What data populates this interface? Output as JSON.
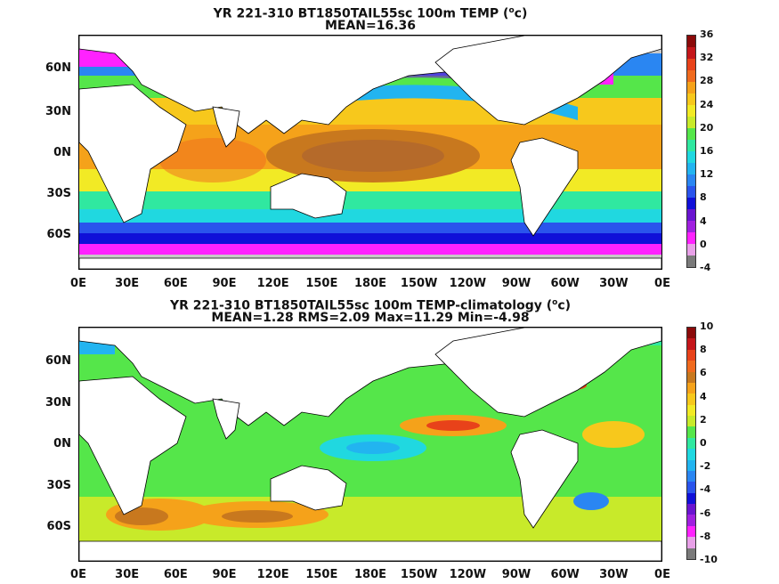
{
  "panels": [
    {
      "title_main": "YR 221-310 BT1850TAIL55sc 100m TEMP (",
      "title_unit": "o",
      "title_end": "c)",
      "subtitle": "MEAN=16.36",
      "colorbar": {
        "ticks": [
          "36",
          "32",
          "28",
          "24",
          "20",
          "16",
          "12",
          "8",
          "4",
          "0",
          "-4"
        ],
        "colors": [
          "#8b0a0a",
          "#c4161a",
          "#e8421a",
          "#f06a1e",
          "#f5a21a",
          "#f7c81c",
          "#f2ea25",
          "#c8ea2a",
          "#55e64a",
          "#30e8a0",
          "#20d8e0",
          "#22b4f0",
          "#2a86f2",
          "#2a54ec",
          "#1010d8",
          "#6a14d0",
          "#a020e0",
          "#ff22ff",
          "#e8a0e8",
          "#7a7a7a"
        ]
      },
      "lat_labels": [
        "60N",
        "30N",
        "0N",
        "30S",
        "60S"
      ],
      "lon_labels": [
        "0E",
        "30E",
        "60E",
        "90E",
        "120E",
        "150E",
        "180E",
        "150W",
        "120W",
        "90W",
        "60W",
        "30W",
        "0E"
      ]
    },
    {
      "title_main": "YR 221-310 BT1850TAIL55sc 100m TEMP-climatology (",
      "title_unit": "o",
      "title_end": "c)",
      "subtitle": "MEAN=1.28   RMS=2.09   Max=11.29   Min=-4.98",
      "colorbar": {
        "ticks": [
          "10",
          "8",
          "6",
          "4",
          "2",
          "0",
          "-2",
          "-4",
          "-6",
          "-8",
          "-10"
        ],
        "colors": [
          "#8b0a0a",
          "#c4161a",
          "#e8421a",
          "#f06a1e",
          "#c8781e",
          "#f5a21a",
          "#f7c81c",
          "#f2ea25",
          "#c8ea2a",
          "#55e64a",
          "#30e8a0",
          "#20d8e0",
          "#22b4f0",
          "#2a86f2",
          "#2a54ec",
          "#1010d8",
          "#6a14d0",
          "#a020e0",
          "#ff22ff",
          "#e8a0e8",
          "#7a7a7a"
        ]
      },
      "lat_labels": [
        "60N",
        "30N",
        "0N",
        "30S",
        "60S"
      ],
      "lon_labels": [
        "0E",
        "30E",
        "60E",
        "90E",
        "120E",
        "150E",
        "180E",
        "150W",
        "120W",
        "90W",
        "60W",
        "30W",
        "0E"
      ]
    }
  ]
}
